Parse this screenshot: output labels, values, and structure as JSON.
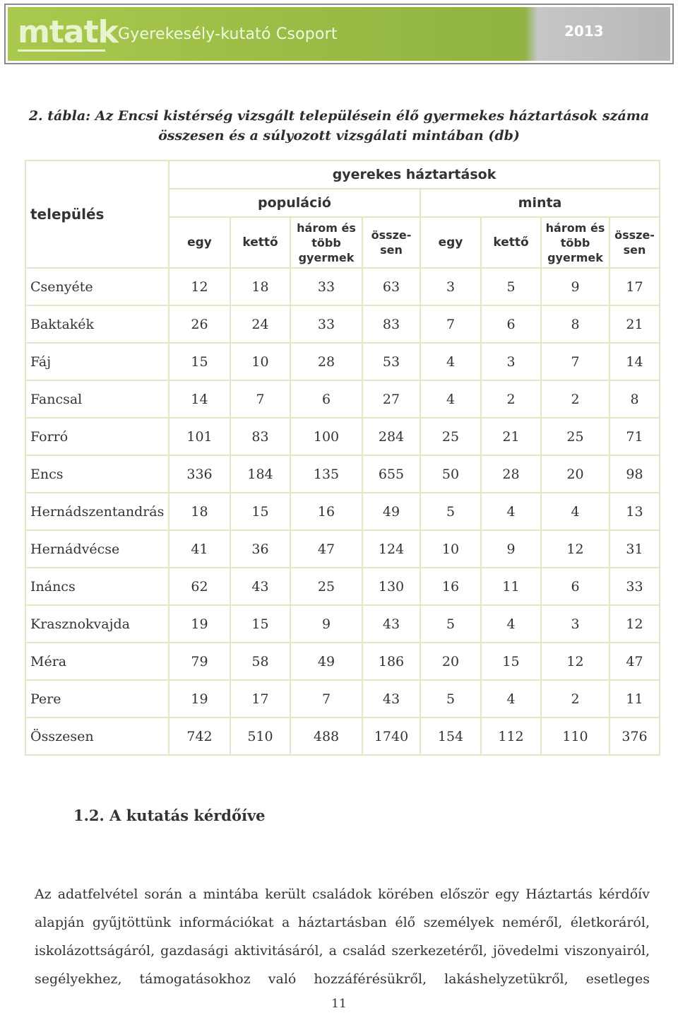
{
  "banner": {
    "logo": "mtatk",
    "subtitle": "Gyerekesély-kutató Csoport",
    "year": "2013"
  },
  "caption": {
    "line1": "2. tábla: Az Encsi kistérség vizsgált településein élő gyermekes háztartások száma",
    "line2": "összesen és a súlyozott vizsgálati mintában (db)"
  },
  "table": {
    "col_telepules": "település",
    "group_label": "gyerekes háztartások",
    "sub_populacio": "populáció",
    "sub_minta": "minta",
    "pop": {
      "egy": "egy",
      "ketto": "kettő",
      "harom_l1": "három és",
      "harom_l2": "több",
      "harom_l3": "gyermek",
      "ossz_l1": "össze-",
      "ossz_l2": "sen"
    },
    "minta": {
      "egy": "egy",
      "ketto": "kettő",
      "harom_l1": "három és",
      "harom_l2": "több",
      "harom_l3": "gyermek",
      "ossz_l1": "össze-",
      "ossz_l2": "sen"
    },
    "rows": [
      [
        "Csenyéte",
        "12",
        "18",
        "33",
        "63",
        "3",
        "5",
        "9",
        "17"
      ],
      [
        "Baktakék",
        "26",
        "24",
        "33",
        "83",
        "7",
        "6",
        "8",
        "21"
      ],
      [
        "Fáj",
        "15",
        "10",
        "28",
        "53",
        "4",
        "3",
        "7",
        "14"
      ],
      [
        "Fancsal",
        "14",
        "7",
        "6",
        "27",
        "4",
        "2",
        "2",
        "8"
      ],
      [
        "Forró",
        "101",
        "83",
        "100",
        "284",
        "25",
        "21",
        "25",
        "71"
      ],
      [
        "Encs",
        "336",
        "184",
        "135",
        "655",
        "50",
        "28",
        "20",
        "98"
      ],
      [
        "Hernádszentandrás",
        "18",
        "15",
        "16",
        "49",
        "5",
        "4",
        "4",
        "13"
      ],
      [
        "Hernádvécse",
        "41",
        "36",
        "47",
        "124",
        "10",
        "9",
        "12",
        "31"
      ],
      [
        "Ináncs",
        "62",
        "43",
        "25",
        "130",
        "16",
        "11",
        "6",
        "33"
      ],
      [
        "Krasznokvajda",
        "19",
        "15",
        "9",
        "43",
        "5",
        "4",
        "3",
        "12"
      ],
      [
        "Méra",
        "79",
        "58",
        "49",
        "186",
        "20",
        "15",
        "12",
        "47"
      ],
      [
        "Pere",
        "19",
        "17",
        "7",
        "43",
        "5",
        "4",
        "2",
        "11"
      ],
      [
        "Összesen",
        "742",
        "510",
        "488",
        "1740",
        "154",
        "112",
        "110",
        "376"
      ]
    ]
  },
  "section": {
    "title": "1.2. A kutatás kérdőíve"
  },
  "paragraph": {
    "line1": "Az adatfelvétel során a mintába került családok körében először egy Háztartás kérdőív",
    "line2": "alapján gyűjtöttünk információkat a háztartásban élő személyek neméről, életkoráról,",
    "line3": "iskolázottságáról, gazdasági aktivitásáról, a család szerkezetéről, jövedelmi viszonyairól,",
    "line4": "segélyekhez, támogatásokhoz való hozzáférésükről, lakáshelyzetükről, esetleges"
  },
  "page_number": "11"
}
